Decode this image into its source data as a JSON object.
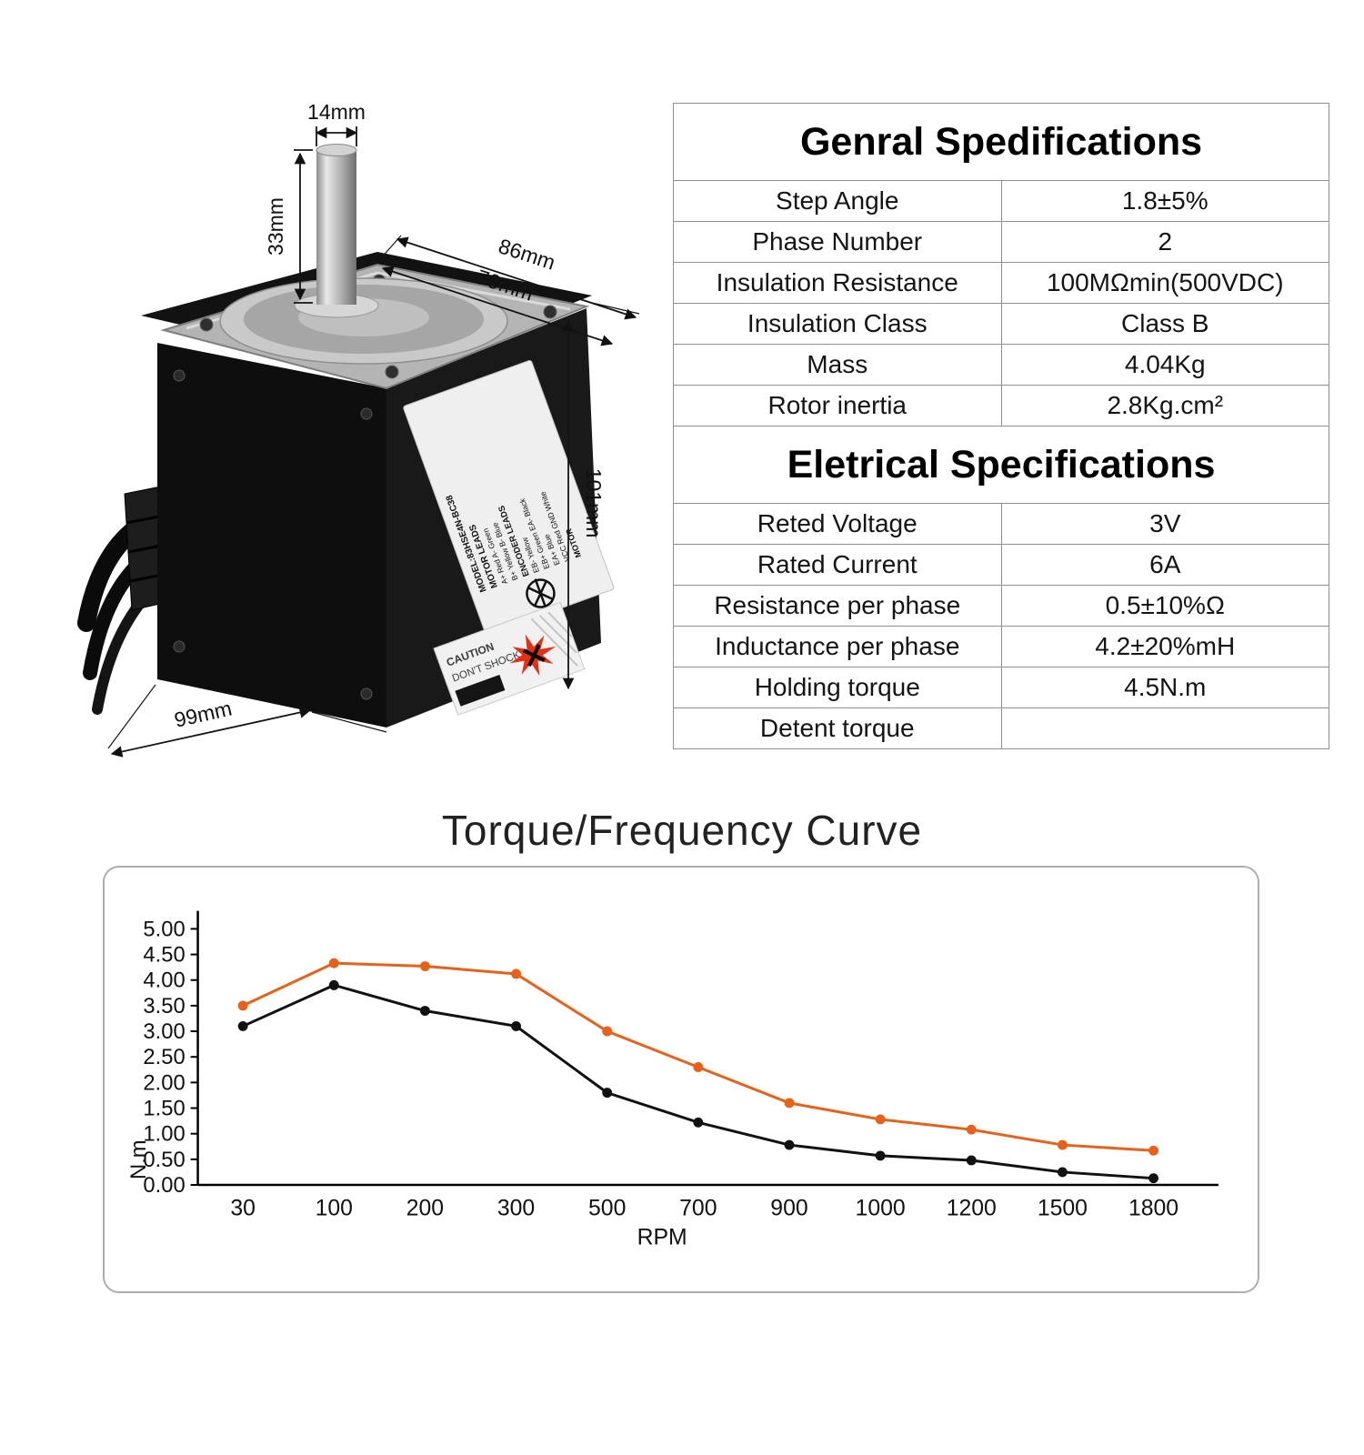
{
  "product_image": {
    "dimensions": {
      "shaft_diameter": "14mm",
      "shaft_length": "33mm",
      "flange_width": "86mm",
      "flange_depth": "70mm",
      "body_height": "101mm",
      "body_length": "99mm"
    },
    "label": {
      "lines": [
        "MODEL:83HSE4N-BC38",
        "MOTOR LEADS",
        "A+ Red  A- Green",
        "B+ Yellow  B- Blue",
        "ENCODER LEADS",
        "EB- Yellow",
        "EB+ Green  EA- Black",
        "EA+ Blue",
        "VCC Red  GND White",
        "MOTOR"
      ],
      "caution_line1": "CAUTION",
      "caution_line2": "DON'T SHOCK"
    }
  },
  "tables": [
    {
      "title": "Genral Spedifications",
      "rows": [
        [
          "Step Angle",
          "1.8±5%"
        ],
        [
          "Phase Number",
          "2"
        ],
        [
          "Insulation Resistance",
          "100MΩmin(500VDC)"
        ],
        [
          "Insulation Class",
          "Class B"
        ],
        [
          "Mass",
          "4.04Kg"
        ],
        [
          "Rotor inertia",
          "2.8Kg.cm²"
        ]
      ]
    },
    {
      "title": "Eletrical Specifications",
      "rows": [
        [
          "Reted Voltage",
          "3V"
        ],
        [
          "Rated Current",
          "6A"
        ],
        [
          "Resistance per phase",
          "0.5±10%Ω"
        ],
        [
          "Inductance per phase",
          "4.2±20%mH"
        ],
        [
          "Holding torque",
          "4.5N.m"
        ],
        [
          "Detent torque",
          ""
        ]
      ]
    }
  ],
  "chart": {
    "title": "Torque/Frequency  Curve"
  },
  "chart_data": {
    "type": "line",
    "title": "Torque/Frequency  Curve",
    "xlabel": "RPM",
    "ylabel": "N.m",
    "categories": [
      30,
      100,
      200,
      300,
      500,
      700,
      900,
      1000,
      1200,
      1500,
      1800
    ],
    "ylim": [
      0,
      5
    ],
    "ytick_step": 0.5,
    "grid": false,
    "legend": "none",
    "series": [
      {
        "name": "upper-curve",
        "color": "#e8611a",
        "values": [
          3.5,
          4.33,
          4.27,
          4.12,
          3.0,
          2.3,
          1.6,
          1.28,
          1.08,
          0.78,
          0.67
        ]
      },
      {
        "name": "lower-curve",
        "color": "#111111",
        "values": [
          3.1,
          3.9,
          3.4,
          3.1,
          1.8,
          1.22,
          0.78,
          0.57,
          0.48,
          0.25,
          0.13
        ]
      }
    ]
  }
}
